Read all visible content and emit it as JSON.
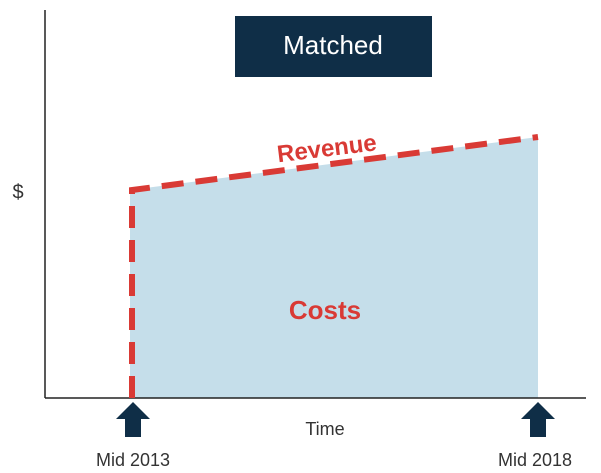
{
  "title": "Matched",
  "y_axis_label": "$",
  "x_axis_label": "Time",
  "revenue_label": "Revenue",
  "costs_label": "Costs",
  "markers": [
    "Mid 2013",
    "Mid 2018"
  ]
}
